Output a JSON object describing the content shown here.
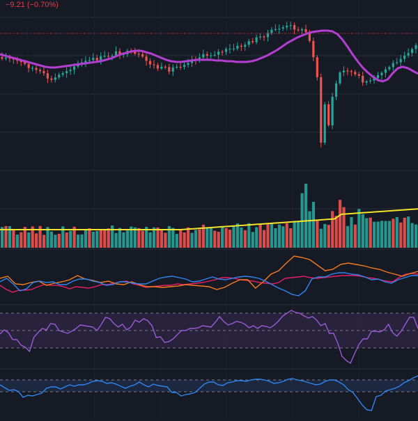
{
  "header": {
    "change_text": "−9.21 (−0.70%)"
  },
  "colors": {
    "background": "#161a25",
    "grid": "#2a2e39",
    "up": "#26a69a",
    "down": "#ef5350",
    "ma_price": "#b23fd0",
    "ma_volume": "#f5e52a",
    "price_line": "#f23645",
    "osc_blue": "#2f86f2",
    "osc_orange": "#f57c1f",
    "osc_red": "#e91e63",
    "rsi": "#9a5ad6",
    "band_fill": "#2b2340",
    "cci": "#2f86f2",
    "cci_fill": "#1c2a44",
    "dashed": "#787b86"
  },
  "chart_data": {
    "type": "candlestick",
    "candle_count": 110,
    "price_ylim": [
      0,
      230
    ],
    "price_line_level": 48,
    "price_ma_color_name": "purple",
    "volume_ma_color_name": "yellow",
    "grid": true,
    "price_ma": [
      78,
      80,
      82,
      84,
      86,
      88,
      90,
      92,
      94,
      96,
      97,
      97,
      96,
      95,
      94,
      93,
      92,
      91,
      90,
      89,
      88,
      86,
      84,
      81,
      78,
      76,
      74,
      73,
      73,
      75,
      77,
      80,
      83,
      86,
      88,
      89,
      89,
      88,
      87,
      86,
      86,
      86,
      86,
      87,
      87,
      88,
      88,
      89,
      89,
      89,
      88,
      86,
      83,
      80,
      76,
      72,
      67,
      62,
      58,
      54,
      51,
      48,
      46,
      45,
      44,
      44,
      45,
      49,
      57,
      67,
      78,
      88,
      97,
      104,
      110,
      115,
      117,
      114,
      105,
      98,
      96,
      98,
      102,
      106
    ],
    "oscillator": {
      "blue": [
        405,
        400,
        408,
        418,
        415,
        406,
        404,
        406,
        405,
        409,
        409,
        404,
        401,
        401,
        404,
        406,
        410,
        409,
        405,
        405,
        407,
        408,
        408,
        404,
        400,
        398,
        397,
        399,
        401,
        405,
        404,
        401,
        398,
        401,
        402,
        400,
        398,
        397,
        398,
        400,
        404,
        409,
        414,
        418,
        423,
        425,
        418,
        401,
        398,
        398,
        394,
        392,
        392,
        394,
        395,
        398,
        402,
        401,
        405,
        407,
        402,
        399,
        396,
        396
      ],
      "orange": [
        400,
        397,
        408,
        409,
        406,
        404,
        410,
        407,
        405,
        402,
        396,
        401,
        403,
        406,
        404,
        408,
        409,
        405,
        409,
        412,
        412,
        413,
        412,
        411,
        409,
        410,
        411,
        412,
        416,
        413,
        407,
        402,
        402,
        414,
        405,
        394,
        389,
        378,
        368,
        370,
        373,
        381,
        389,
        387,
        380,
        378,
        380,
        382,
        385,
        387,
        391,
        394,
        397,
        393,
        390
      ],
      "red": [
        410,
        416,
        420,
        417,
        417,
        416,
        412,
        409,
        410,
        410,
        412,
        415,
        412,
        413,
        414,
        412,
        409,
        409,
        407,
        405,
        404,
        408,
        410,
        413,
        412,
        411,
        410,
        410,
        408,
        409,
        408,
        407,
        406,
        404,
        402,
        399,
        399,
        400,
        402,
        403,
        404,
        406,
        407,
        408,
        406,
        400,
        399,
        398,
        397,
        399,
        400,
        399,
        398,
        397,
        396,
        396,
        396,
        397,
        399,
        400,
        402,
        404,
        405,
        399,
        394,
        393,
        394
      ]
    },
    "rsi": {
      "upper_band": 450,
      "lower_band": 500,
      "mid": 475,
      "values": [
        480,
        474,
        478,
        488,
        488,
        496,
        499,
        505,
        485,
        478,
        472,
        474,
        465,
        466,
        475,
        477,
        479,
        476,
        472,
        467,
        468,
        469,
        470,
        475,
        466,
        456,
        458,
        465,
        470,
        466,
        474,
        470,
        460,
        463,
        458,
        461,
        468,
        485,
        484,
        492,
        491,
        487,
        481,
        475,
        475,
        472,
        472,
        471,
        468,
        469,
        470,
        463,
        455,
        462,
        467,
        465,
        462,
        463,
        466,
        471,
        468,
        472,
        468,
        469,
        471,
        467,
        461,
        454,
        450,
        446,
        449,
        450,
        454,
        457,
        455,
        460,
        468,
        465,
        479,
        479,
        493,
        512,
        518,
        522,
        508,
        495,
        487,
        487,
        476,
        476,
        477,
        474,
        466,
        478,
        483,
        476,
        466,
        456,
        456,
        472
      ]
    },
    "cci": {
      "upper_band": 546,
      "lower_band": 563,
      "values": [
        553,
        557,
        561,
        560,
        563,
        571,
        568,
        569,
        567,
        565,
        558,
        556,
        556,
        559,
        556,
        553,
        555,
        553,
        553,
        551,
        548,
        547,
        548,
        551,
        550,
        552,
        555,
        558,
        555,
        553,
        549,
        553,
        556,
        552,
        554,
        555,
        556,
        564,
        564,
        569,
        567,
        566,
        564,
        558,
        552,
        549,
        549,
        553,
        554,
        550,
        549,
        547,
        547,
        548,
        546,
        545,
        545,
        546,
        548,
        551,
        550,
        548,
        545,
        544,
        546,
        547,
        549,
        551,
        553,
        552,
        548,
        546,
        546,
        549,
        553,
        560,
        564,
        573,
        582,
        589,
        590,
        570,
        568,
        562,
        560,
        558,
        555,
        550,
        547,
        543,
        540
      ]
    },
    "volume_ma_level": 315
  }
}
